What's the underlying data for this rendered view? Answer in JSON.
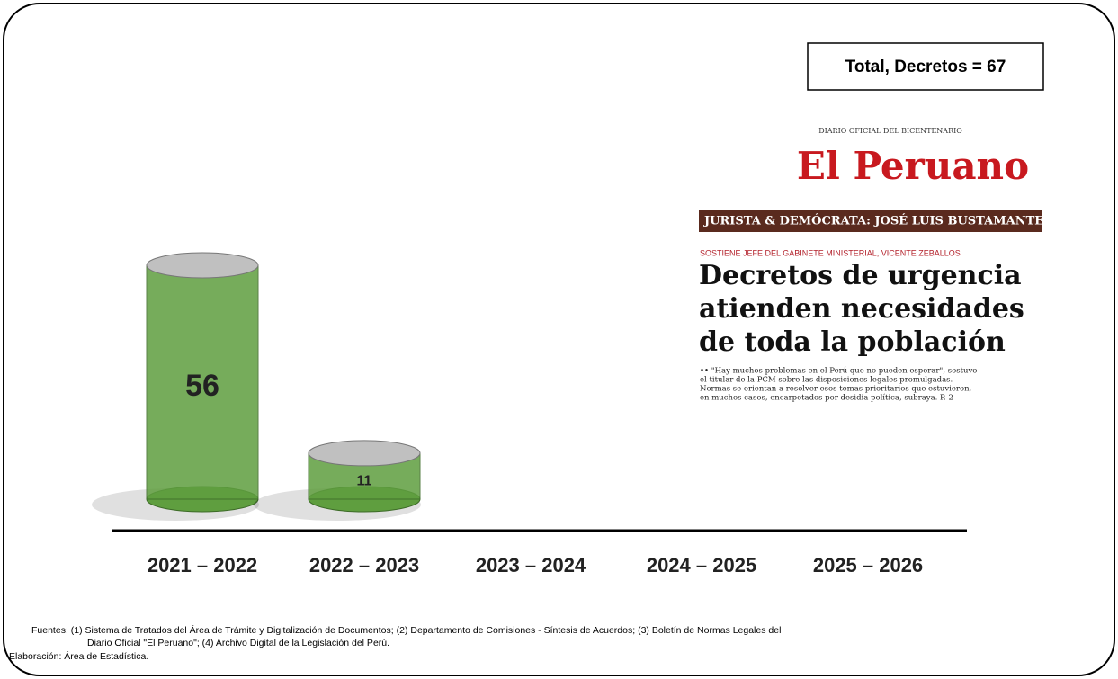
{
  "chart_data": {
    "type": "bar",
    "title": "Total, Decretos = 67",
    "categories": [
      "2021 – 2022",
      "2022 – 2023",
      "2023 – 2024",
      "2024 – 2025",
      "2025 – 2026"
    ],
    "values": [
      56,
      11,
      null,
      null,
      null
    ],
    "color": "#5f9e3f"
  },
  "newspaper": {
    "kicker": "DIARIO OFICIAL DEL BICENTENARIO",
    "masthead": "El Peruano",
    "banner": "JURISTA & DEMÓCRATA: JOSÉ LUIS BUSTAMANTE Y RI",
    "overline": "SOSTIENE JEFE DEL GABINETE MINISTERIAL, VICENTE ZEBALLOS",
    "headline": [
      "Decretos de urgencia",
      "atienden necesidades",
      "de toda la población"
    ],
    "body": [
      "•• \"Hay muchos problemas en el Perú que no pueden esperar\", sostuvo",
      "el titular de la PCM sobre las disposiciones legales promulgadas.",
      "Normas se orientan a resolver esos temas prioritarios que estuvieron,",
      "en muchos casos, encarpetados por desidia política, subraya. P. 2"
    ]
  },
  "notes": [
    "Fuentes: (1) Sistema de Tratados del Área de Trámite y Digitalización de Documentos; (2) Departamento de Comisiones - Síntesis de Acuerdos; (3) Boletín de Normas Legales del",
    "Diario Oficial \"El Peruano\"; (4) Archivo Digital de la Legislación del Perú.",
    "Elaboración: Área de Estadística."
  ]
}
